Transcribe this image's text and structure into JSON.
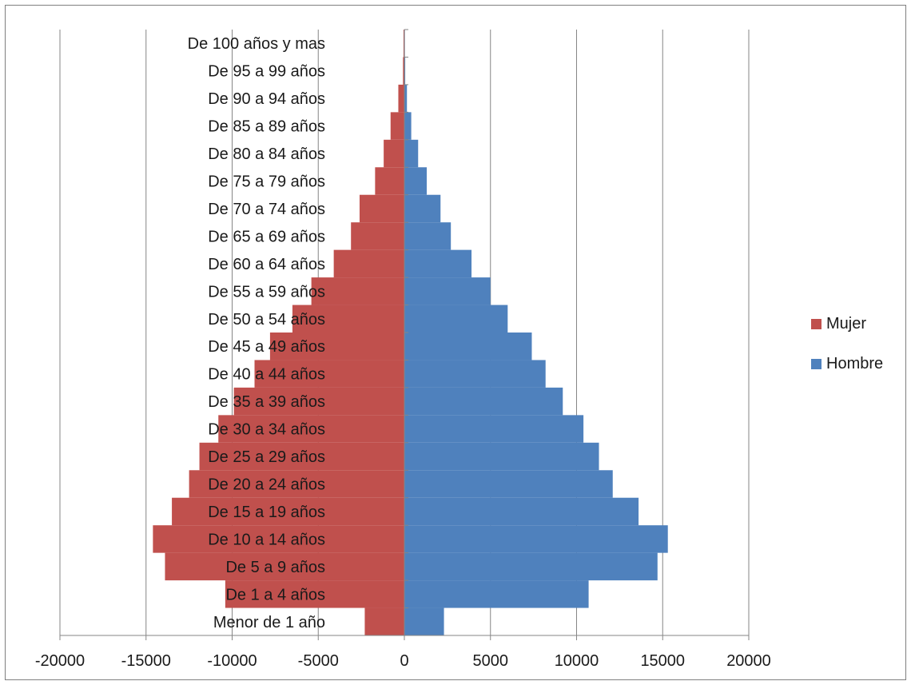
{
  "chart_data": {
    "type": "bar",
    "orientation": "horizontal",
    "stacked": true,
    "title": "",
    "xlabel": "",
    "ylabel": "",
    "categories": [
      "Menor de 1 año",
      "De 1 a 4 años",
      "De 5 a 9 años",
      "De 10 a 14 años",
      "De 15 a 19 años",
      "De 20 a 24 años",
      "De 25 a 29 años",
      "De 30 a 34 años",
      "De 35 a 39 años",
      "De 40 a 44 años",
      "De 45 a 49 años",
      "De 50 a 54 años",
      "De 55 a 59 años",
      "De 60 a 64 años",
      "De 65 a 69 años",
      "De 70 a 74 años",
      "De 75 a 79 años",
      "De 80 a 84 años",
      "De 85 a 89 años",
      "De 90 a 94 años",
      "De 95 a 99 años",
      "De 100 años y mas"
    ],
    "series": [
      {
        "name": "Mujer",
        "color": "#c0504d",
        "values": [
          -2300,
          -10400,
          -13900,
          -14600,
          -13500,
          -12500,
          -11900,
          -10800,
          -9900,
          -8700,
          -7800,
          -6500,
          -5400,
          -4100,
          -3100,
          -2600,
          -1700,
          -1200,
          -800,
          -350,
          -80,
          -50
        ]
      },
      {
        "name": "Hombre",
        "color": "#4f81bd",
        "values": [
          2300,
          10700,
          14700,
          15300,
          13600,
          12100,
          11300,
          10400,
          9200,
          8200,
          7400,
          6000,
          5000,
          3900,
          2700,
          2100,
          1300,
          800,
          400,
          150,
          50,
          30
        ]
      }
    ],
    "xlim": [
      -20000,
      20000
    ],
    "x_ticks": [
      "-20000",
      "-15000",
      "-10000",
      "-5000",
      "0",
      "5000",
      "10000",
      "15000",
      "20000"
    ],
    "x_tick_values": [
      -20000,
      -15000,
      -10000,
      -5000,
      0,
      5000,
      10000,
      15000,
      20000
    ],
    "grid": "vertical",
    "legend_position": "right"
  }
}
